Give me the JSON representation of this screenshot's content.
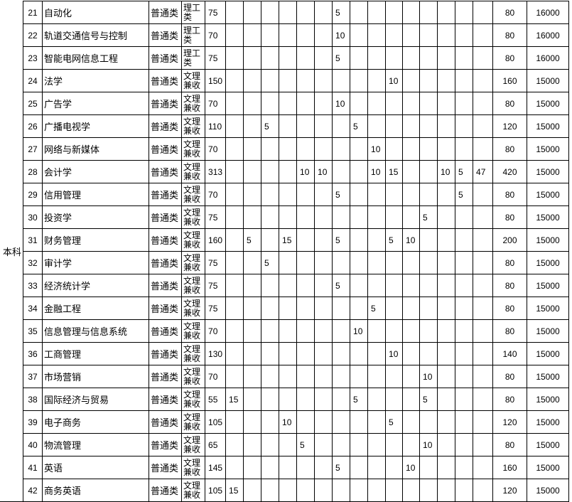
{
  "level_label": "本科",
  "rows": [
    {
      "no": "21",
      "name": "自动化",
      "type": "普通类",
      "category": "理工类",
      "base": "75",
      "extra": [
        "",
        "",
        "",
        "",
        "",
        "",
        "5",
        "",
        "",
        "",
        "",
        "",
        "",
        "",
        ""
      ],
      "plan": "80",
      "fee": "16000"
    },
    {
      "no": "22",
      "name": "轨道交通信号与控制",
      "type": "普通类",
      "category": "理工类",
      "base": "70",
      "extra": [
        "",
        "",
        "",
        "",
        "",
        "",
        "10",
        "",
        "",
        "",
        "",
        "",
        "",
        "",
        ""
      ],
      "plan": "80",
      "fee": "16000"
    },
    {
      "no": "23",
      "name": "智能电网信息工程",
      "type": "普通类",
      "category": "理工类",
      "base": "75",
      "extra": [
        "",
        "",
        "",
        "",
        "",
        "",
        "5",
        "",
        "",
        "",
        "",
        "",
        "",
        "",
        ""
      ],
      "plan": "80",
      "fee": "16000"
    },
    {
      "no": "24",
      "name": "法学",
      "type": "普通类",
      "category": "文理兼收",
      "base": "150",
      "extra": [
        "",
        "",
        "",
        "",
        "",
        "",
        "",
        "",
        "",
        "10",
        "",
        "",
        "",
        "",
        ""
      ],
      "plan": "160",
      "fee": "15000"
    },
    {
      "no": "25",
      "name": "广告学",
      "type": "普通类",
      "category": "文理兼收",
      "base": "70",
      "extra": [
        "",
        "",
        "",
        "",
        "",
        "",
        "10",
        "",
        "",
        "",
        "",
        "",
        "",
        "",
        ""
      ],
      "plan": "80",
      "fee": "15000"
    },
    {
      "no": "26",
      "name": "广播电视学",
      "type": "普通类",
      "category": "文理兼收",
      "base": "110",
      "extra": [
        "",
        "",
        "5",
        "",
        "",
        "",
        "",
        "5",
        "",
        "",
        "",
        "",
        "",
        "",
        ""
      ],
      "plan": "120",
      "fee": "15000"
    },
    {
      "no": "27",
      "name": "网络与新媒体",
      "type": "普通类",
      "category": "文理兼收",
      "base": "70",
      "extra": [
        "",
        "",
        "",
        "",
        "",
        "",
        "",
        "",
        "10",
        "",
        "",
        "",
        "",
        "",
        ""
      ],
      "plan": "80",
      "fee": "15000"
    },
    {
      "no": "28",
      "name": "会计学",
      "type": "普通类",
      "category": "文理兼收",
      "base": "313",
      "extra": [
        "",
        "",
        "",
        "",
        "10",
        "10",
        "",
        "",
        "10",
        "15",
        "",
        "",
        "10",
        "5",
        "47"
      ],
      "plan": "420",
      "fee": "15000"
    },
    {
      "no": "29",
      "name": "信用管理",
      "type": "普通类",
      "category": "文理兼收",
      "base": "70",
      "extra": [
        "",
        "",
        "",
        "",
        "",
        "",
        "5",
        "",
        "",
        "",
        "",
        "",
        "",
        "5",
        ""
      ],
      "plan": "80",
      "fee": "15000"
    },
    {
      "no": "30",
      "name": "投资学",
      "type": "普通类",
      "category": "文理兼收",
      "base": "75",
      "extra": [
        "",
        "",
        "",
        "",
        "",
        "",
        "",
        "",
        "",
        "",
        "",
        "5",
        "",
        "",
        ""
      ],
      "plan": "80",
      "fee": "15000"
    },
    {
      "no": "31",
      "name": "财务管理",
      "type": "普通类",
      "category": "文理兼收",
      "base": "160",
      "extra": [
        "",
        "5",
        "",
        "15",
        "",
        "",
        "5",
        "",
        "",
        "5",
        "10",
        "",
        "",
        "",
        ""
      ],
      "plan": "200",
      "fee": "15000"
    },
    {
      "no": "32",
      "name": "审计学",
      "type": "普通类",
      "category": "文理兼收",
      "base": "75",
      "extra": [
        "",
        "",
        "5",
        "",
        "",
        "",
        "",
        "",
        "",
        "",
        "",
        "",
        "",
        "",
        ""
      ],
      "plan": "80",
      "fee": "15000"
    },
    {
      "no": "33",
      "name": "经济统计学",
      "type": "普通类",
      "category": "文理兼收",
      "base": "75",
      "extra": [
        "",
        "",
        "",
        "",
        "",
        "",
        "5",
        "",
        "",
        "",
        "",
        "",
        "",
        "",
        ""
      ],
      "plan": "80",
      "fee": "15000"
    },
    {
      "no": "34",
      "name": "金融工程",
      "type": "普通类",
      "category": "文理兼收",
      "base": "75",
      "extra": [
        "",
        "",
        "",
        "",
        "",
        "",
        "",
        "",
        "5",
        "",
        "",
        "",
        "",
        "",
        ""
      ],
      "plan": "80",
      "fee": "15000"
    },
    {
      "no": "35",
      "name": "信息管理与信息系统",
      "type": "普通类",
      "category": "文理兼收",
      "base": "70",
      "extra": [
        "",
        "",
        "",
        "",
        "",
        "",
        "",
        "10",
        "",
        "",
        "",
        "",
        "",
        "",
        ""
      ],
      "plan": "80",
      "fee": "15000"
    },
    {
      "no": "36",
      "name": "工商管理",
      "type": "普通类",
      "category": "文理兼收",
      "base": "130",
      "extra": [
        "",
        "",
        "",
        "",
        "",
        "",
        "",
        "",
        "",
        "10",
        "",
        "",
        "",
        "",
        ""
      ],
      "plan": "140",
      "fee": "15000"
    },
    {
      "no": "37",
      "name": "市场营销",
      "type": "普通类",
      "category": "文理兼收",
      "base": "70",
      "extra": [
        "",
        "",
        "",
        "",
        "",
        "",
        "",
        "",
        "",
        "",
        "",
        "10",
        "",
        "",
        ""
      ],
      "plan": "80",
      "fee": "15000"
    },
    {
      "no": "38",
      "name": "国际经济与贸易",
      "type": "普通类",
      "category": "文理兼收",
      "base": "55",
      "extra": [
        "15",
        "",
        "",
        "",
        "",
        "",
        "",
        "5",
        "",
        "",
        "",
        "5",
        "",
        "",
        ""
      ],
      "plan": "80",
      "fee": "15000"
    },
    {
      "no": "39",
      "name": "电子商务",
      "type": "普通类",
      "category": "文理兼收",
      "base": "105",
      "extra": [
        "",
        "",
        "",
        "10",
        "",
        "",
        "",
        "",
        "",
        "5",
        "",
        "",
        "",
        "",
        ""
      ],
      "plan": "120",
      "fee": "15000"
    },
    {
      "no": "40",
      "name": "物流管理",
      "type": "普通类",
      "category": "文理兼收",
      "base": "65",
      "extra": [
        "",
        "",
        "",
        "",
        "5",
        "",
        "",
        "",
        "",
        "",
        "",
        "10",
        "",
        "",
        ""
      ],
      "plan": "80",
      "fee": "15000"
    },
    {
      "no": "41",
      "name": "英语",
      "type": "普通类",
      "category": "文理兼收",
      "base": "145",
      "extra": [
        "",
        "",
        "",
        "",
        "",
        "",
        "5",
        "",
        "",
        "",
        "10",
        "",
        "",
        "",
        ""
      ],
      "plan": "160",
      "fee": "15000"
    },
    {
      "no": "42",
      "name": "商务英语",
      "type": "普通类",
      "category": "文理兼收",
      "base": "105",
      "extra": [
        "15",
        "",
        "",
        "",
        "",
        "",
        "",
        "",
        "",
        "",
        "",
        "",
        "",
        "",
        ""
      ],
      "plan": "120",
      "fee": "15000"
    }
  ]
}
